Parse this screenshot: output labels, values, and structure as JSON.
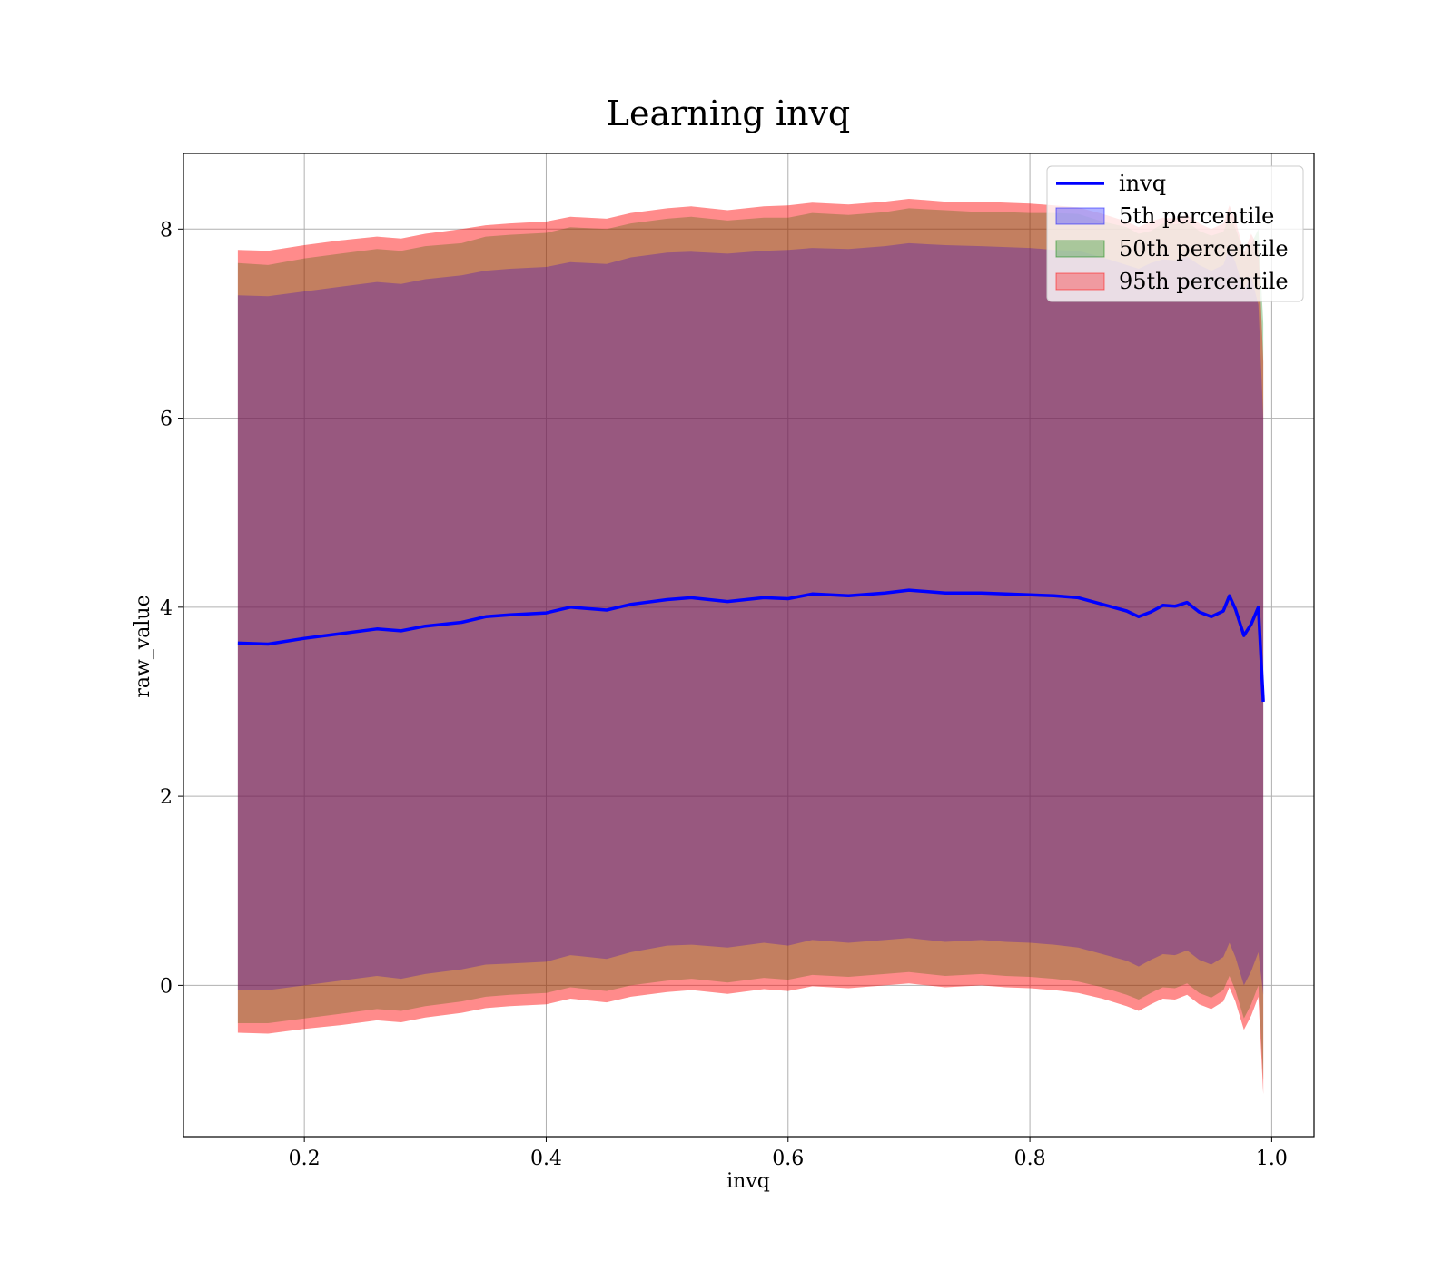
{
  "chart_data": {
    "type": "area",
    "title": "Learning invq",
    "xlabel": "invq",
    "ylabel": "raw_value",
    "xlim": [
      0.1,
      1.035
    ],
    "ylim": [
      -1.6,
      8.8
    ],
    "xticks": [
      0.2,
      0.4,
      0.6,
      0.8,
      1.0
    ],
    "xtick_labels": [
      "0.2",
      "0.4",
      "0.6",
      "0.8",
      "1.0"
    ],
    "yticks": [
      0,
      2,
      4,
      6,
      8
    ],
    "ytick_labels": [
      "0",
      "2",
      "4",
      "6",
      "8"
    ],
    "grid": true,
    "legend_position": "upper-right",
    "colors": {
      "line": "#0000ff",
      "p5": "#0000ff",
      "p50": "#008000",
      "p95": "#ff0000"
    },
    "x": [
      0.145,
      0.17,
      0.2,
      0.23,
      0.26,
      0.28,
      0.3,
      0.33,
      0.35,
      0.37,
      0.4,
      0.42,
      0.45,
      0.47,
      0.5,
      0.52,
      0.55,
      0.58,
      0.6,
      0.62,
      0.65,
      0.68,
      0.7,
      0.73,
      0.76,
      0.78,
      0.8,
      0.82,
      0.84,
      0.86,
      0.88,
      0.89,
      0.9,
      0.91,
      0.92,
      0.93,
      0.94,
      0.95,
      0.96,
      0.965,
      0.97,
      0.977,
      0.983,
      0.989,
      0.993
    ],
    "series": [
      {
        "name": "invq",
        "type": "line",
        "values": [
          3.62,
          3.61,
          3.67,
          3.72,
          3.77,
          3.75,
          3.8,
          3.84,
          3.9,
          3.92,
          3.94,
          4.0,
          3.97,
          4.03,
          4.08,
          4.1,
          4.06,
          4.1,
          4.09,
          4.14,
          4.12,
          4.15,
          4.18,
          4.15,
          4.15,
          4.14,
          4.13,
          4.12,
          4.1,
          4.03,
          3.96,
          3.9,
          3.95,
          4.02,
          4.01,
          4.05,
          3.95,
          3.9,
          3.96,
          4.12,
          3.98,
          3.7,
          3.82,
          4.0,
          3.0
        ]
      },
      {
        "name": "5th percentile",
        "type": "band",
        "lower": [
          -0.05,
          -0.05,
          0.0,
          0.05,
          0.1,
          0.07,
          0.12,
          0.17,
          0.22,
          0.23,
          0.25,
          0.32,
          0.28,
          0.35,
          0.42,
          0.43,
          0.4,
          0.45,
          0.42,
          0.48,
          0.45,
          0.48,
          0.5,
          0.46,
          0.48,
          0.46,
          0.45,
          0.43,
          0.4,
          0.33,
          0.26,
          0.2,
          0.27,
          0.33,
          0.32,
          0.37,
          0.27,
          0.22,
          0.3,
          0.45,
          0.3,
          0.0,
          0.15,
          0.35,
          -0.1
        ],
        "upper": [
          7.3,
          7.29,
          7.34,
          7.39,
          7.44,
          7.42,
          7.47,
          7.51,
          7.56,
          7.58,
          7.6,
          7.65,
          7.63,
          7.7,
          7.75,
          7.76,
          7.74,
          7.77,
          7.78,
          7.8,
          7.79,
          7.82,
          7.85,
          7.83,
          7.82,
          7.81,
          7.8,
          7.78,
          7.77,
          7.7,
          7.62,
          7.58,
          7.64,
          7.68,
          7.67,
          7.71,
          7.62,
          7.56,
          7.62,
          7.8,
          7.65,
          7.35,
          7.5,
          7.2,
          6.0
        ]
      },
      {
        "name": "50th percentile",
        "type": "band",
        "lower": [
          -0.4,
          -0.4,
          -0.35,
          -0.3,
          -0.25,
          -0.27,
          -0.22,
          -0.17,
          -0.12,
          -0.1,
          -0.08,
          -0.02,
          -0.06,
          0.0,
          0.05,
          0.07,
          0.03,
          0.08,
          0.06,
          0.11,
          0.09,
          0.12,
          0.14,
          0.1,
          0.12,
          0.1,
          0.09,
          0.07,
          0.04,
          -0.02,
          -0.1,
          -0.15,
          -0.08,
          -0.02,
          -0.03,
          0.02,
          -0.08,
          -0.13,
          -0.05,
          0.1,
          -0.05,
          -0.35,
          -0.2,
          0.0,
          -1.0
        ]
      },
      {
        "name": "95th percentile",
        "type": "band",
        "lower": [
          -0.5,
          -0.51,
          -0.46,
          -0.42,
          -0.37,
          -0.39,
          -0.34,
          -0.29,
          -0.24,
          -0.22,
          -0.2,
          -0.14,
          -0.18,
          -0.12,
          -0.07,
          -0.05,
          -0.09,
          -0.04,
          -0.06,
          -0.01,
          -0.03,
          0.0,
          0.02,
          -0.02,
          0.0,
          -0.02,
          -0.03,
          -0.05,
          -0.08,
          -0.14,
          -0.22,
          -0.27,
          -0.2,
          -0.14,
          -0.15,
          -0.1,
          -0.2,
          -0.25,
          -0.17,
          -0.02,
          -0.17,
          -0.47,
          -0.32,
          -0.12,
          -1.15
        ],
        "upper": [
          7.78,
          7.77,
          7.83,
          7.88,
          7.92,
          7.9,
          7.95,
          8.0,
          8.04,
          8.06,
          8.08,
          8.13,
          8.11,
          8.17,
          8.22,
          8.24,
          8.2,
          8.24,
          8.25,
          8.28,
          8.26,
          8.29,
          8.32,
          8.29,
          8.29,
          8.28,
          8.27,
          8.25,
          8.23,
          8.16,
          8.08,
          8.02,
          8.08,
          8.12,
          8.11,
          8.15,
          8.06,
          8.0,
          8.06,
          8.25,
          8.1,
          7.75,
          7.95,
          7.8,
          6.6
        ]
      }
    ]
  }
}
